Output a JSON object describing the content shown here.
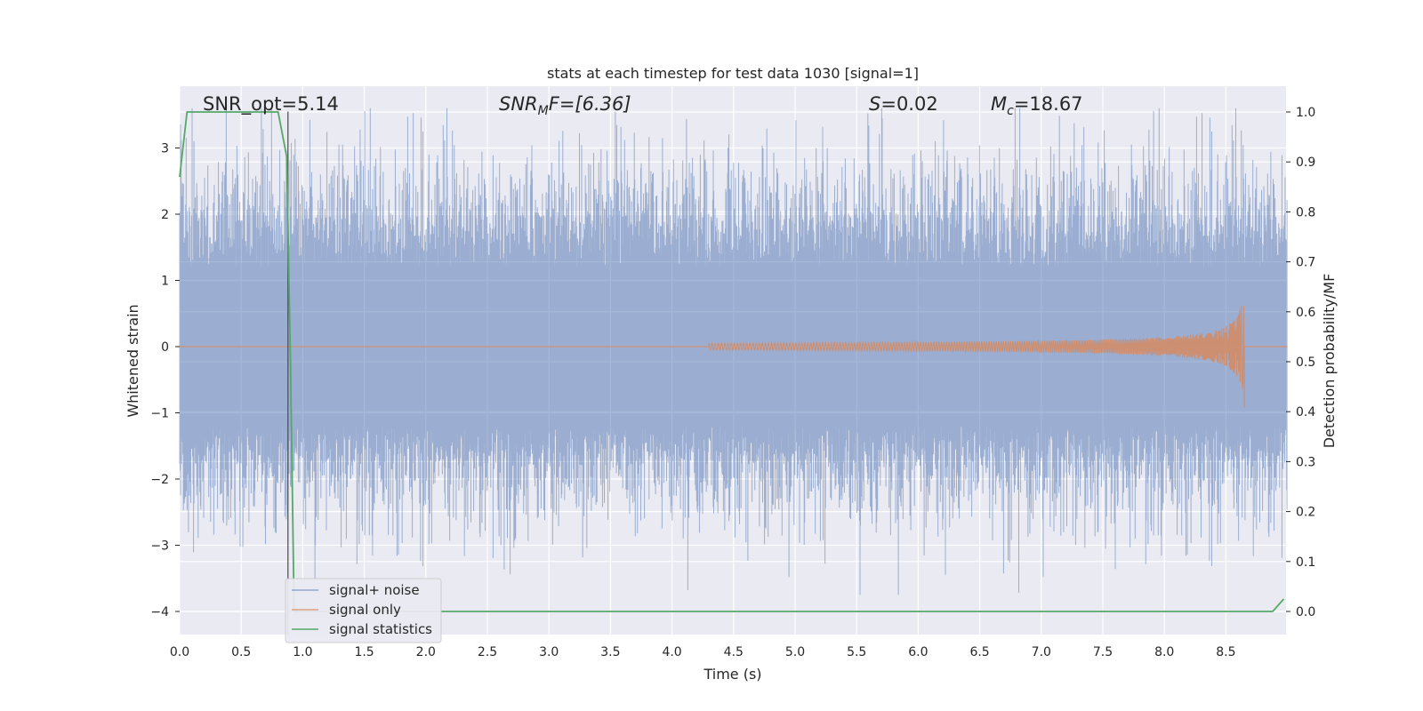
{
  "chart_data": {
    "type": "line",
    "title": "stats at each timestep for test data 1030 [signal=1]",
    "xlabel": "Time (s)",
    "ylabel": "Whitened strain",
    "ylabel_right": "Detection probability/MF",
    "xlim": [
      0,
      9
    ],
    "ylim": [
      -4.35,
      3.95
    ],
    "ylim_right": [
      -0.05,
      1.05
    ],
    "x_ticks": [
      "0.0",
      "0.5",
      "1.0",
      "1.5",
      "2.0",
      "2.5",
      "3.0",
      "3.5",
      "4.0",
      "4.5",
      "5.0",
      "5.5",
      "6.0",
      "6.5",
      "7.0",
      "7.5",
      "8.0",
      "8.5"
    ],
    "y_ticks_left": [
      "−4",
      "−3",
      "−2",
      "−1",
      "0",
      "1",
      "2",
      "3"
    ],
    "y_ticks_right": [
      "0.0",
      "0.1",
      "0.2",
      "0.3",
      "0.4",
      "0.5",
      "0.6",
      "0.7",
      "0.8",
      "0.9",
      "1.0"
    ],
    "grid": true,
    "legend_placement": "lower-left",
    "annotations": {
      "snr_opt": "SNR_opt=5.14",
      "snr_mf_prefix": "SNR",
      "snr_mf_sub": "M",
      "snr_mf_suffix": "F=[6.36]",
      "s_prefix": "S",
      "s_suffix": "=0.02",
      "mc_prefix": "M",
      "mc_sub": "c",
      "mc_suffix": "=18.67"
    },
    "marker_line_x": 0.88,
    "series": [
      {
        "name": "signal+ noise",
        "color": "#4c72b0",
        "description_kind": "noise",
        "x_range": [
          0,
          9
        ],
        "amplitude_envelope": 3.6
      },
      {
        "name": "signal only",
        "color": "#dd8452",
        "description_kind": "chirp",
        "chirp_start_x": 4.3,
        "chirp_end_x": 8.65,
        "peak_amplitude": 1.0
      },
      {
        "name": "signal statistics",
        "color": "#55a868",
        "x": [
          0.0,
          0.06,
          0.1,
          0.2,
          0.4,
          0.6,
          0.8,
          0.87,
          0.9,
          0.93,
          1.0,
          2.0,
          3.0,
          4.0,
          5.0,
          6.0,
          7.0,
          8.0,
          8.7,
          8.88,
          8.97
        ],
        "y": [
          0.87,
          1.0,
          1.0,
          1.0,
          1.0,
          1.0,
          1.0,
          0.91,
          0.5,
          0.0,
          0.0,
          0.0,
          0.0,
          0.0,
          0.0,
          0.0,
          0.0,
          0.0,
          0.0,
          0.0,
          0.025
        ]
      }
    ]
  }
}
